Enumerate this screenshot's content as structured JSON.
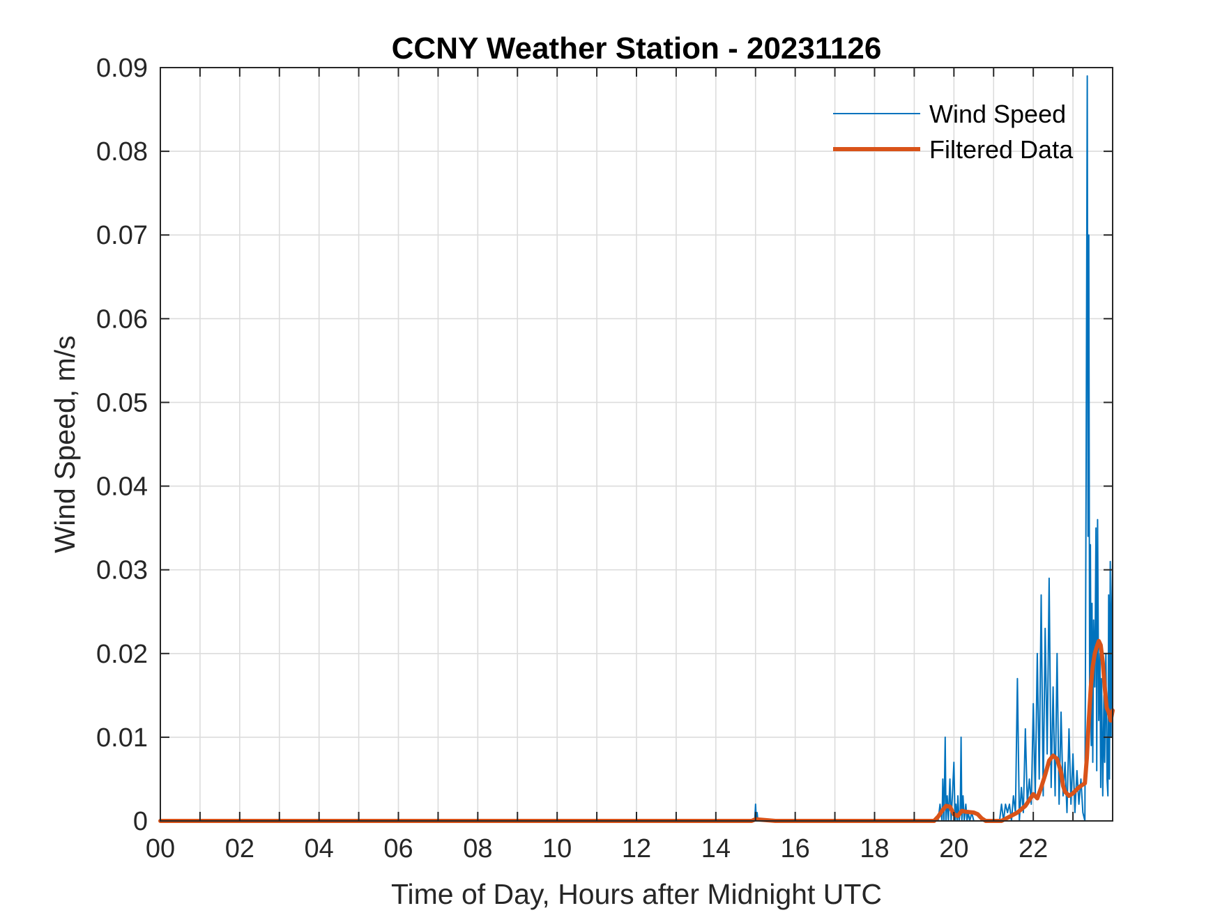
{
  "chart_data": {
    "type": "line",
    "title": "CCNY Weather Station - 20231126",
    "xlabel": "Time of Day, Hours after Midnight UTC",
    "ylabel": "Wind Speed, m/s",
    "xlim": [
      0,
      24
    ],
    "ylim": [
      0,
      0.09
    ],
    "grid": true,
    "legend_position": "top-right",
    "x_ticks": [
      0,
      2,
      4,
      6,
      8,
      10,
      12,
      14,
      16,
      18,
      20,
      22
    ],
    "x_tick_labels": [
      "00",
      "02",
      "04",
      "06",
      "08",
      "10",
      "12",
      "14",
      "16",
      "18",
      "20",
      "22"
    ],
    "y_ticks": [
      0,
      0.01,
      0.02,
      0.03,
      0.04,
      0.05,
      0.06,
      0.07,
      0.08,
      0.09
    ],
    "y_tick_labels": [
      "0",
      "0.01",
      "0.02",
      "0.03",
      "0.04",
      "0.05",
      "0.06",
      "0.07",
      "0.08",
      "0.09"
    ],
    "series": [
      {
        "name": "Wind Speed",
        "color": "#0072BD",
        "style": "thin",
        "x": [
          0,
          14.98,
          15.0,
          15.02,
          15.04,
          15.06,
          19.6,
          19.65,
          19.7,
          19.72,
          19.75,
          19.78,
          19.8,
          19.83,
          19.86,
          19.9,
          19.93,
          19.96,
          20.0,
          20.03,
          20.05,
          20.08,
          20.1,
          20.13,
          20.16,
          20.18,
          20.2,
          20.23,
          20.26,
          20.3,
          20.33,
          20.36,
          20.4,
          20.45,
          20.5,
          20.55,
          20.6,
          20.7,
          20.8,
          21.0,
          21.15,
          21.2,
          21.25,
          21.3,
          21.35,
          21.4,
          21.45,
          21.5,
          21.55,
          21.6,
          21.65,
          21.7,
          21.75,
          21.8,
          21.85,
          21.9,
          21.95,
          22.0,
          22.05,
          22.1,
          22.15,
          22.2,
          22.25,
          22.3,
          22.35,
          22.4,
          22.45,
          22.5,
          22.55,
          22.6,
          22.65,
          22.7,
          22.75,
          22.8,
          22.85,
          22.9,
          22.95,
          23.0,
          23.05,
          23.1,
          23.15,
          23.2,
          23.25,
          23.3,
          23.33,
          23.36,
          23.38,
          23.4,
          23.42,
          23.44,
          23.46,
          23.48,
          23.5,
          23.52,
          23.55,
          23.58,
          23.6,
          23.62,
          23.65,
          23.68,
          23.7,
          23.72,
          23.75,
          23.78,
          23.8,
          23.83,
          23.86,
          23.88,
          23.9,
          23.92,
          23.94,
          23.96,
          23.98,
          24.0
        ],
        "y": [
          0,
          0,
          0.002,
          0,
          0.001,
          0,
          0,
          0.002,
          0,
          0.005,
          0,
          0.01,
          0,
          0.003,
          0,
          0.005,
          0,
          0.003,
          0.007,
          0,
          0.002,
          0,
          0.003,
          0,
          0.001,
          0.01,
          0,
          0.003,
          0,
          0.002,
          0,
          0.001,
          0,
          0.001,
          0,
          0,
          0,
          0,
          0,
          0,
          0,
          0.002,
          0,
          0.002,
          0.001,
          0.002,
          0,
          0.003,
          0.001,
          0.017,
          0,
          0.004,
          0.001,
          0.011,
          0.002,
          0.005,
          0.002,
          0.014,
          0.003,
          0.02,
          0.005,
          0.027,
          0.003,
          0.023,
          0.008,
          0.029,
          0.004,
          0.016,
          0.003,
          0.02,
          0.002,
          0.013,
          0.003,
          0.007,
          0.001,
          0.011,
          0.002,
          0.008,
          0.001,
          0.006,
          0.002,
          0.005,
          0.001,
          0.0,
          0.04,
          0.089,
          0.034,
          0.07,
          0.015,
          0.033,
          0.009,
          0.026,
          0.007,
          0.024,
          0.016,
          0.035,
          0.006,
          0.036,
          0.012,
          0.02,
          0.004,
          0.017,
          0.003,
          0.015,
          0.007,
          0.02,
          0.005,
          0.003,
          0.027,
          0.005,
          0.031,
          0.01,
          0.026,
          0.031
        ]
      },
      {
        "name": "Filtered Data",
        "color": "#D95319",
        "style": "thick",
        "x": [
          0,
          14.9,
          15.0,
          15.5,
          16.0,
          19.5,
          19.6,
          19.7,
          19.8,
          19.9,
          20.0,
          20.1,
          20.2,
          20.3,
          20.5,
          20.6,
          20.7,
          20.8,
          21.0,
          21.2,
          21.4,
          21.6,
          21.8,
          21.9,
          22.0,
          22.1,
          22.2,
          22.3,
          22.4,
          22.5,
          22.6,
          22.7,
          22.75,
          22.8,
          22.9,
          23.0,
          23.1,
          23.2,
          23.3,
          23.35,
          23.4,
          23.45,
          23.5,
          23.55,
          23.6,
          23.65,
          23.7,
          23.75,
          23.8,
          23.85,
          23.9,
          23.95,
          24.0
        ],
        "y": [
          0,
          0,
          0.0002,
          0,
          0,
          0,
          0.0005,
          0.0012,
          0.0018,
          0.0017,
          0.0008,
          0.0006,
          0.0012,
          0.0011,
          0.001,
          0.0008,
          0.0003,
          0,
          0,
          0,
          0.0005,
          0.001,
          0.0018,
          0.0025,
          0.0032,
          0.0027,
          0.004,
          0.0055,
          0.0072,
          0.0078,
          0.0074,
          0.0058,
          0.0042,
          0.0035,
          0.003,
          0.0033,
          0.0038,
          0.0042,
          0.0045,
          0.0075,
          0.012,
          0.016,
          0.0185,
          0.02,
          0.0208,
          0.0215,
          0.021,
          0.019,
          0.016,
          0.0135,
          0.013,
          0.012,
          0.0132
        ]
      }
    ]
  }
}
